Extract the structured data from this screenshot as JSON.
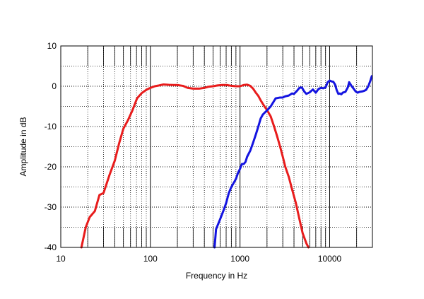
{
  "chart_data": {
    "type": "line",
    "title": "",
    "xlabel": "Frequency in Hz",
    "ylabel": "Amplitude in dB",
    "xscale": "log",
    "xlim": [
      10,
      30000
    ],
    "ylim": [
      -40,
      10
    ],
    "grid": true,
    "x_ticks": [
      {
        "value": 10,
        "label": "10"
      },
      {
        "value": 100,
        "label": "100"
      },
      {
        "value": 1000,
        "label": "1000"
      },
      {
        "value": 10000,
        "label": "10000"
      }
    ],
    "y_ticks": [
      {
        "value": 10,
        "label": "10"
      },
      {
        "value": 0,
        "label": "0"
      },
      {
        "value": -10,
        "label": "-10"
      },
      {
        "value": -20,
        "label": "-20"
      },
      {
        "value": -30,
        "label": "-30"
      },
      {
        "value": -40,
        "label": "-40"
      }
    ],
    "series": [
      {
        "color": "#e81c1c",
        "points": [
          [
            17,
            -40
          ],
          [
            19,
            -35
          ],
          [
            21,
            -32.5
          ],
          [
            24,
            -31
          ],
          [
            27,
            -27
          ],
          [
            30,
            -26.5
          ],
          [
            35,
            -22
          ],
          [
            40,
            -18.5
          ],
          [
            45,
            -14
          ],
          [
            50,
            -10.5
          ],
          [
            56,
            -8.5
          ],
          [
            63,
            -6
          ],
          [
            71,
            -3
          ],
          [
            80,
            -1.7
          ],
          [
            90,
            -0.9
          ],
          [
            100,
            -0.4
          ],
          [
            112,
            0
          ],
          [
            125,
            0.2
          ],
          [
            140,
            0.45
          ],
          [
            160,
            0.35
          ],
          [
            180,
            0.3
          ],
          [
            200,
            0.3
          ],
          [
            230,
            0.1
          ],
          [
            260,
            -0.4
          ],
          [
            300,
            -0.6
          ],
          [
            350,
            -0.6
          ],
          [
            400,
            -0.4
          ],
          [
            450,
            -0.1
          ],
          [
            500,
            0
          ],
          [
            560,
            0.2
          ],
          [
            630,
            0.3
          ],
          [
            710,
            0.3
          ],
          [
            800,
            0.1
          ],
          [
            900,
            0
          ],
          [
            1000,
            0
          ],
          [
            1100,
            0.3
          ],
          [
            1200,
            0.4
          ],
          [
            1300,
            0.1
          ],
          [
            1400,
            -0.6
          ],
          [
            1500,
            -1.6
          ],
          [
            1600,
            -2.4
          ],
          [
            1700,
            -3.5
          ],
          [
            1800,
            -4.4
          ],
          [
            1900,
            -5.2
          ],
          [
            2000,
            -5.9
          ],
          [
            2200,
            -7.5
          ],
          [
            2400,
            -10
          ],
          [
            2600,
            -12.5
          ],
          [
            2800,
            -15
          ],
          [
            3000,
            -17.5
          ],
          [
            3200,
            -20
          ],
          [
            3500,
            -22.5
          ],
          [
            3800,
            -25.5
          ],
          [
            4200,
            -29
          ],
          [
            4600,
            -33
          ],
          [
            5000,
            -36.5
          ],
          [
            5500,
            -39
          ],
          [
            5800,
            -40
          ]
        ]
      },
      {
        "color": "#1414e0",
        "points": [
          [
            520,
            -40
          ],
          [
            540,
            -35.5
          ],
          [
            600,
            -33
          ],
          [
            650,
            -31
          ],
          [
            700,
            -29
          ],
          [
            750,
            -26.5
          ],
          [
            800,
            -25
          ],
          [
            850,
            -24
          ],
          [
            900,
            -23
          ],
          [
            950,
            -21.5
          ],
          [
            1000,
            -20.5
          ],
          [
            1050,
            -19.3
          ],
          [
            1100,
            -19.3
          ],
          [
            1150,
            -18.8
          ],
          [
            1200,
            -17.5
          ],
          [
            1300,
            -16
          ],
          [
            1400,
            -14
          ],
          [
            1500,
            -12
          ],
          [
            1600,
            -10
          ],
          [
            1700,
            -8
          ],
          [
            1800,
            -7
          ],
          [
            2000,
            -6
          ],
          [
            2200,
            -5
          ],
          [
            2500,
            -3
          ],
          [
            2800,
            -2.8
          ],
          [
            3000,
            -2.8
          ],
          [
            3200,
            -2.5
          ],
          [
            3500,
            -2.3
          ],
          [
            3800,
            -1.8
          ],
          [
            4000,
            -1.9
          ],
          [
            4300,
            -1.2
          ],
          [
            4600,
            -0.4
          ],
          [
            4900,
            -0.3
          ],
          [
            5200,
            -1.3
          ],
          [
            5500,
            -1.9
          ],
          [
            6000,
            -1.5
          ],
          [
            6500,
            -0.8
          ],
          [
            7000,
            -1.6
          ],
          [
            7500,
            -0.7
          ],
          [
            8000,
            -0.4
          ],
          [
            8500,
            -0.5
          ],
          [
            9000,
            -0.3
          ],
          [
            9500,
            1
          ],
          [
            10000,
            1.4
          ],
          [
            10500,
            1.2
          ],
          [
            11000,
            1.1
          ],
          [
            11500,
            0.4
          ],
          [
            12000,
            -1
          ],
          [
            12500,
            -1.9
          ],
          [
            13000,
            -1.8
          ],
          [
            13500,
            -2
          ],
          [
            14000,
            -1.6
          ],
          [
            15000,
            -1.4
          ],
          [
            16000,
            -0.2
          ],
          [
            16500,
            1
          ],
          [
            17500,
            0.1
          ],
          [
            18500,
            -0.6
          ],
          [
            19500,
            -1.3
          ],
          [
            20500,
            -1.6
          ],
          [
            21500,
            -1.4
          ],
          [
            23000,
            -1.3
          ],
          [
            24500,
            -1.1
          ],
          [
            25500,
            -0.9
          ],
          [
            27000,
            0
          ],
          [
            28500,
            1.4
          ],
          [
            29500,
            2.5
          ]
        ]
      }
    ]
  }
}
